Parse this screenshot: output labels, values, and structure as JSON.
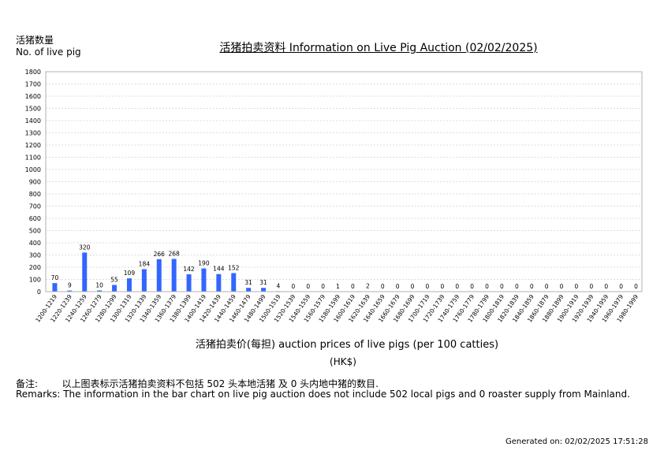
{
  "header": {
    "ylabel_cn": "活猪数量",
    "ylabel_en": "No. of live pig",
    "title": "活猪拍卖资料 Information on Live Pig Auction (02/02/2025)"
  },
  "footer": {
    "xlabel": "活猪拍卖价(每担) auction prices of live pigs (per 100 catties)",
    "unit": "(HK$)",
    "remark_cn": "备注:        以上图表标示活猪拍卖资料不包括 502 头本地活猪 及 0 头内地中猪的数目.",
    "remark_en": "Remarks: The information in the bar chart on live pig auction does not include 502 local pigs and 0 roaster supply from Mainland.",
    "generated": "Generated on: 02/02/2025 17:51:28"
  },
  "chart_data": {
    "type": "bar",
    "title": "活猪拍卖资料 Information on Live Pig Auction (02/02/2025)",
    "xlabel": "活猪拍卖价(每担) auction prices of live pigs (per 100 catties)",
    "ylabel": "活猪数量 No. of live pig",
    "ylim": [
      0,
      1800
    ],
    "yticks": [
      0,
      100,
      200,
      300,
      400,
      500,
      600,
      700,
      800,
      900,
      1000,
      1100,
      1200,
      1300,
      1400,
      1500,
      1600,
      1700,
      1800
    ],
    "grid": true,
    "bar_color": "#3366ff",
    "categories": [
      "1200-1219",
      "1220-1239",
      "1240-1259",
      "1260-1279",
      "1280-1299",
      "1300-1319",
      "1320-1339",
      "1340-1359",
      "1360-1379",
      "1380-1399",
      "1400-1419",
      "1420-1439",
      "1440-1459",
      "1460-1479",
      "1480-1499",
      "1500-1519",
      "1520-1539",
      "1540-1559",
      "1560-1579",
      "1580-1599",
      "1600-1619",
      "1620-1639",
      "1640-1659",
      "1660-1679",
      "1680-1699",
      "1700-1719",
      "1720-1739",
      "1740-1759",
      "1760-1779",
      "1780-1799",
      "1800-1819",
      "1820-1839",
      "1840-1859",
      "1860-1879",
      "1880-1899",
      "1900-1919",
      "1920-1939",
      "1940-1959",
      "1960-1979",
      "1980-1999"
    ],
    "values": [
      70,
      9,
      320,
      10,
      55,
      109,
      184,
      266,
      268,
      142,
      190,
      144,
      152,
      31,
      31,
      4,
      0,
      0,
      0,
      1,
      0,
      2,
      0,
      0,
      0,
      0,
      0,
      0,
      0,
      0,
      0,
      0,
      0,
      0,
      0,
      0,
      0,
      0,
      0,
      0
    ]
  }
}
